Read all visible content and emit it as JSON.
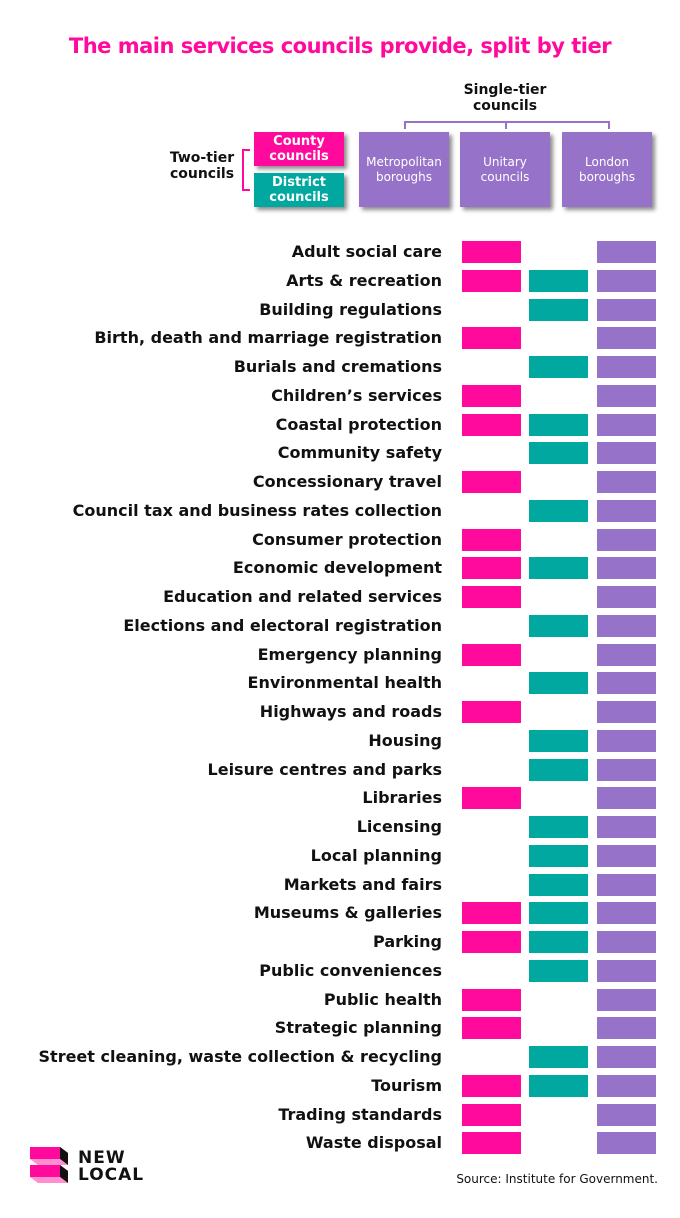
{
  "title": "The main services councils provide, split by tier",
  "colors": {
    "county": "#ff0a9c",
    "district": "#00a8a0",
    "single": "#9673c8"
  },
  "header": {
    "single_tier": "Single-tier councils",
    "two_tier": "Two-tier councils",
    "county": "County councils",
    "district": "District councils",
    "metropolitan": "Metropolitan boroughs",
    "unitary": "Unitary councils",
    "london": "London boroughs"
  },
  "services": [
    {
      "name": "Adult social care",
      "county": true,
      "district": false,
      "single": true
    },
    {
      "name": "Arts & recreation",
      "county": true,
      "district": true,
      "single": true
    },
    {
      "name": "Building regulations",
      "county": false,
      "district": true,
      "single": true
    },
    {
      "name": "Birth, death and marriage registration",
      "county": true,
      "district": false,
      "single": true
    },
    {
      "name": "Burials and cremations",
      "county": false,
      "district": true,
      "single": true
    },
    {
      "name": "Children’s services",
      "county": true,
      "district": false,
      "single": true
    },
    {
      "name": "Coastal protection",
      "county": true,
      "district": true,
      "single": true
    },
    {
      "name": "Community safety",
      "county": false,
      "district": true,
      "single": true
    },
    {
      "name": "Concessionary travel",
      "county": true,
      "district": false,
      "single": true
    },
    {
      "name": "Council tax and business rates collection",
      "county": false,
      "district": true,
      "single": true
    },
    {
      "name": "Consumer protection",
      "county": true,
      "district": false,
      "single": true
    },
    {
      "name": "Economic development",
      "county": true,
      "district": true,
      "single": true
    },
    {
      "name": "Education and related services",
      "county": true,
      "district": false,
      "single": true
    },
    {
      "name": "Elections and electoral registration",
      "county": false,
      "district": true,
      "single": true
    },
    {
      "name": "Emergency planning",
      "county": true,
      "district": false,
      "single": true
    },
    {
      "name": "Environmental health",
      "county": false,
      "district": true,
      "single": true
    },
    {
      "name": "Highways and roads",
      "county": true,
      "district": false,
      "single": true
    },
    {
      "name": "Housing",
      "county": false,
      "district": true,
      "single": true
    },
    {
      "name": "Leisure centres and parks",
      "county": false,
      "district": true,
      "single": true
    },
    {
      "name": "Libraries",
      "county": true,
      "district": false,
      "single": true
    },
    {
      "name": "Licensing",
      "county": false,
      "district": true,
      "single": true
    },
    {
      "name": "Local planning",
      "county": false,
      "district": true,
      "single": true
    },
    {
      "name": "Markets and fairs",
      "county": false,
      "district": true,
      "single": true
    },
    {
      "name": "Museums & galleries",
      "county": true,
      "district": true,
      "single": true
    },
    {
      "name": "Parking",
      "county": true,
      "district": true,
      "single": true
    },
    {
      "name": "Public conveniences",
      "county": false,
      "district": true,
      "single": true
    },
    {
      "name": "Public health",
      "county": true,
      "district": false,
      "single": true
    },
    {
      "name": "Strategic planning",
      "county": true,
      "district": false,
      "single": true
    },
    {
      "name": "Street cleaning, waste collection & recycling",
      "county": false,
      "district": true,
      "single": true
    },
    {
      "name": "Tourism",
      "county": true,
      "district": true,
      "single": true
    },
    {
      "name": "Trading standards",
      "county": true,
      "district": false,
      "single": true
    },
    {
      "name": "Waste disposal",
      "county": true,
      "district": false,
      "single": true
    }
  ],
  "logo": {
    "line1": "NEW",
    "line2": "LOCAL"
  },
  "source": "Source: Institute for Government."
}
